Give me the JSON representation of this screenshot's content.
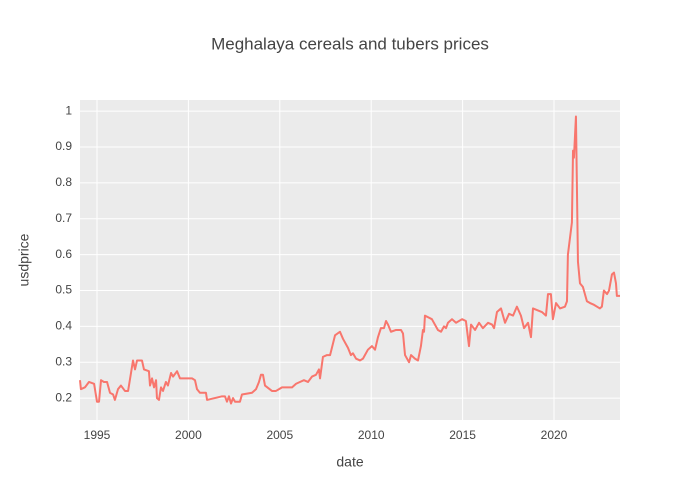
{
  "chart_data": {
    "type": "line",
    "title": "Meghalaya cereals and tubers prices",
    "x_label": "date",
    "y_label": "usdprice",
    "color": "#f8766d",
    "grid": true,
    "x": [
      1994.07,
      1994.12,
      1994.34,
      1994.56,
      1994.84,
      1995.0,
      1995.11,
      1995.22,
      1995.38,
      1995.55,
      1995.71,
      1995.88,
      1995.98,
      1996.15,
      1996.31,
      1996.53,
      1996.7,
      1996.86,
      1996.97,
      1997.08,
      1997.19,
      1997.46,
      1997.57,
      1997.84,
      1997.9,
      1998.01,
      1998.12,
      1998.23,
      1998.28,
      1998.39,
      1998.5,
      1998.61,
      1998.77,
      1998.88,
      1999.05,
      1999.16,
      1999.38,
      1999.54,
      2000.2,
      2000.36,
      2000.47,
      2000.63,
      2000.96,
      2001.02,
      2001.84,
      2002.0,
      2002.11,
      2002.22,
      2002.33,
      2002.44,
      2002.55,
      2002.82,
      2002.93,
      2003.48,
      2003.7,
      2003.86,
      2003.97,
      2004.08,
      2004.19,
      2004.57,
      2004.79,
      2004.96,
      2005.12,
      2005.67,
      2005.89,
      2006.1,
      2006.32,
      2006.54,
      2006.76,
      2006.98,
      2007.14,
      2007.2,
      2007.36,
      2007.58,
      2007.75,
      2007.85,
      2008.02,
      2008.29,
      2008.46,
      2008.73,
      2008.89,
      2009.0,
      2009.17,
      2009.39,
      2009.55,
      2009.82,
      2010.04,
      2010.21,
      2010.37,
      2010.53,
      2010.7,
      2010.81,
      2010.92,
      2011.08,
      2011.36,
      2011.63,
      2011.74,
      2011.85,
      2012.07,
      2012.18,
      2012.39,
      2012.56,
      2012.72,
      2012.83,
      2012.89,
      2012.94,
      2013.32,
      2013.65,
      2013.82,
      2013.98,
      2014.09,
      2014.2,
      2014.42,
      2014.64,
      2014.97,
      2015.18,
      2015.35,
      2015.46,
      2015.68,
      2015.9,
      2016.11,
      2016.39,
      2016.61,
      2016.72,
      2016.88,
      2017.1,
      2017.32,
      2017.54,
      2017.76,
      2017.97,
      2018.19,
      2018.36,
      2018.58,
      2018.74,
      2018.85,
      2019.34,
      2019.56,
      2019.67,
      2019.83,
      2019.94,
      2020.11,
      2020.33,
      2020.6,
      2020.71,
      2020.76,
      2020.98,
      2021.04,
      2021.09,
      2021.2,
      2021.31,
      2021.42,
      2021.58,
      2021.8,
      2021.97,
      2022.19,
      2022.51,
      2022.62,
      2022.73,
      2022.9,
      2023.01,
      2023.17,
      2023.28,
      2023.39,
      2023.44,
      2023.61
    ],
    "values": [
      0.25,
      0.225,
      0.23,
      0.245,
      0.24,
      0.19,
      0.19,
      0.25,
      0.245,
      0.245,
      0.215,
      0.21,
      0.195,
      0.225,
      0.235,
      0.22,
      0.22,
      0.27,
      0.305,
      0.28,
      0.305,
      0.305,
      0.28,
      0.275,
      0.235,
      0.255,
      0.23,
      0.25,
      0.2,
      0.195,
      0.23,
      0.22,
      0.245,
      0.235,
      0.27,
      0.26,
      0.275,
      0.255,
      0.255,
      0.25,
      0.225,
      0.215,
      0.215,
      0.195,
      0.205,
      0.205,
      0.19,
      0.205,
      0.185,
      0.2,
      0.19,
      0.19,
      0.21,
      0.215,
      0.225,
      0.245,
      0.265,
      0.265,
      0.235,
      0.22,
      0.22,
      0.225,
      0.23,
      0.23,
      0.24,
      0.245,
      0.25,
      0.245,
      0.26,
      0.265,
      0.28,
      0.255,
      0.315,
      0.32,
      0.32,
      0.34,
      0.375,
      0.385,
      0.365,
      0.34,
      0.32,
      0.325,
      0.31,
      0.305,
      0.31,
      0.335,
      0.345,
      0.335,
      0.37,
      0.395,
      0.395,
      0.415,
      0.405,
      0.385,
      0.39,
      0.39,
      0.38,
      0.32,
      0.3,
      0.32,
      0.31,
      0.305,
      0.345,
      0.39,
      0.385,
      0.43,
      0.42,
      0.39,
      0.385,
      0.4,
      0.395,
      0.41,
      0.42,
      0.41,
      0.42,
      0.415,
      0.345,
      0.405,
      0.39,
      0.41,
      0.395,
      0.41,
      0.405,
      0.395,
      0.44,
      0.45,
      0.41,
      0.435,
      0.43,
      0.455,
      0.43,
      0.395,
      0.41,
      0.37,
      0.45,
      0.44,
      0.43,
      0.49,
      0.49,
      0.42,
      0.465,
      0.45,
      0.455,
      0.47,
      0.6,
      0.69,
      0.89,
      0.87,
      0.985,
      0.58,
      0.52,
      0.51,
      0.47,
      0.465,
      0.46,
      0.45,
      0.455,
      0.5,
      0.49,
      0.5,
      0.545,
      0.55,
      0.52,
      0.485,
      0.485
    ],
    "xlim": [
      1994.07,
      2023.61
    ],
    "xticks": [
      1995,
      2000,
      2005,
      2010,
      2015,
      2020
    ],
    "ylim": [
      0.139,
      1.031
    ],
    "yticks": [
      0.2,
      0.3,
      0.4,
      0.5,
      0.6,
      0.7,
      0.8,
      0.9,
      1
    ]
  }
}
